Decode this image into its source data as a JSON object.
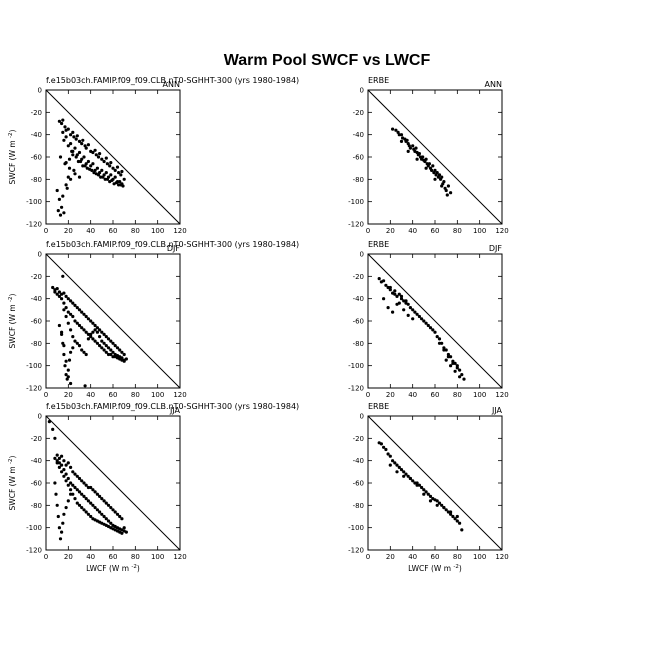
{
  "title": "Warm Pool SWCF vs LWCF",
  "left_label": "f.e15b03ch.FAMIP.f09_f09.CLB.nT0-SGHHT-300 (yrs 1980-1984)",
  "right_label": "ERBE",
  "xlabel": "LWCF (W m",
  "ylabel": "SWCF (W m",
  "unit_sup": "-2",
  "colors": {
    "points": "#000000",
    "axes": "#000000",
    "background": "#ffffff"
  },
  "chart_data": [
    {
      "type": "scatter",
      "panel": "model",
      "season": "ANN",
      "label": "f.e15b03ch.FAMIP.f09_f09.CLB.nT0-SGHHT-300 (yrs 1980-1984)",
      "xlim": [
        0,
        120
      ],
      "ylim": [
        -120,
        0
      ],
      "xticks": [
        0,
        20,
        40,
        60,
        80,
        100,
        120
      ],
      "yticks": [
        0,
        -20,
        -40,
        -60,
        -80,
        -100,
        -120
      ],
      "reference_line": "y = -x",
      "grid": false,
      "x": [
        12,
        14,
        15,
        17,
        18,
        20,
        22,
        24,
        25,
        27,
        28,
        30,
        32,
        33,
        35,
        36,
        38,
        40,
        42,
        44,
        45,
        47,
        48,
        50,
        52,
        54,
        55,
        57,
        58,
        60,
        62,
        64,
        65,
        67,
        68,
        70,
        16,
        20,
        24,
        28,
        32,
        36,
        40,
        44,
        48,
        52,
        56,
        60,
        64,
        68,
        15,
        18,
        22,
        26,
        30,
        34,
        38,
        42,
        46,
        50,
        54,
        58,
        62,
        66,
        10,
        12,
        14,
        16,
        18,
        20,
        11,
        13,
        15,
        19,
        22,
        25,
        18,
        21,
        24,
        29,
        33,
        37,
        41,
        45,
        49,
        53,
        57,
        61,
        65,
        69,
        23,
        27,
        31,
        35,
        39,
        43,
        47,
        51,
        55,
        59,
        63,
        67,
        13,
        17,
        21,
        26,
        30
      ],
      "y": [
        -28,
        -30,
        -27,
        -33,
        -36,
        -35,
        -40,
        -38,
        -42,
        -44,
        -41,
        -46,
        -48,
        -45,
        -50,
        -52,
        -49,
        -55,
        -56,
        -54,
        -58,
        -60,
        -57,
        -62,
        -64,
        -61,
        -66,
        -68,
        -65,
        -70,
        -72,
        -69,
        -74,
        -76,
        -73,
        -80,
        -45,
        -50,
        -55,
        -58,
        -62,
        -66,
        -68,
        -72,
        -74,
        -76,
        -78,
        -80,
        -82,
        -84,
        -38,
        -42,
        -48,
        -52,
        -56,
        -60,
        -64,
        -66,
        -70,
        -72,
        -74,
        -76,
        -78,
        -82,
        -90,
        -98,
        -105,
        -110,
        -85,
        -78,
        -108,
        -112,
        -95,
        -88,
        -80,
        -72,
        -65,
        -62,
        -58,
        -64,
        -68,
        -70,
        -72,
        -75,
        -78,
        -80,
        -82,
        -84,
        -85,
        -86,
        -55,
        -60,
        -64,
        -68,
        -71,
        -74,
        -76,
        -78,
        -80,
        -81,
        -83,
        -85,
        -60,
        -66,
        -70,
        -75,
        -78
      ]
    },
    {
      "type": "scatter",
      "panel": "obs",
      "season": "ANN",
      "label": "ERBE",
      "xlim": [
        0,
        120
      ],
      "ylim": [
        -120,
        0
      ],
      "xticks": [
        0,
        20,
        40,
        60,
        80,
        100,
        120
      ],
      "yticks": [
        0,
        -20,
        -40,
        -60,
        -80,
        -100,
        -120
      ],
      "reference_line": "y = -x",
      "grid": false,
      "x": [
        22,
        25,
        27,
        28,
        30,
        31,
        33,
        34,
        35,
        36,
        37,
        38,
        40,
        41,
        42,
        43,
        44,
        45,
        46,
        47,
        48,
        49,
        50,
        51,
        52,
        53,
        54,
        55,
        56,
        57,
        58,
        59,
        60,
        61,
        62,
        63,
        64,
        65,
        66,
        67,
        68,
        69,
        70,
        72,
        74,
        30,
        36,
        44,
        52,
        60,
        66,
        71
      ],
      "y": [
        -35,
        -36,
        -38,
        -40,
        -40,
        -43,
        -44,
        -46,
        -45,
        -48,
        -50,
        -52,
        -50,
        -53,
        -55,
        -52,
        -56,
        -58,
        -57,
        -60,
        -62,
        -60,
        -63,
        -64,
        -62,
        -66,
        -68,
        -66,
        -70,
        -72,
        -68,
        -74,
        -72,
        -76,
        -74,
        -78,
        -76,
        -80,
        -78,
        -84,
        -82,
        -88,
        -90,
        -86,
        -92,
        -46,
        -55,
        -62,
        -70,
        -80,
        -86,
        -94
      ]
    },
    {
      "type": "scatter",
      "panel": "model",
      "season": "DJF",
      "label": "f.e15b03ch.FAMIP.f09_f09.CLB.nT0-SGHHT-300 (yrs 1980-1984)",
      "xlim": [
        0,
        120
      ],
      "ylim": [
        -120,
        0
      ],
      "xticks": [
        0,
        20,
        40,
        60,
        80,
        100,
        120
      ],
      "yticks": [
        0,
        -20,
        -40,
        -60,
        -80,
        -100,
        -120
      ],
      "reference_line": "y = -x",
      "grid": false,
      "x": [
        6,
        8,
        10,
        12,
        14,
        16,
        18,
        20,
        22,
        24,
        26,
        28,
        30,
        32,
        34,
        36,
        38,
        40,
        42,
        44,
        46,
        48,
        50,
        52,
        54,
        56,
        58,
        60,
        62,
        64,
        66,
        68,
        70,
        72,
        8,
        10,
        12,
        14,
        16,
        18,
        20,
        22,
        24,
        26,
        28,
        30,
        32,
        34,
        36,
        38,
        40,
        42,
        44,
        46,
        48,
        50,
        52,
        54,
        56,
        58,
        60,
        62,
        64,
        66,
        68,
        70,
        14,
        15,
        16,
        17,
        18,
        19,
        20,
        21,
        22,
        24,
        12,
        14,
        16,
        18,
        20,
        22,
        16,
        18,
        20,
        22,
        24,
        26,
        28,
        30,
        32,
        34,
        36,
        38,
        40,
        42,
        44,
        46,
        48,
        50,
        52,
        54,
        56,
        58,
        60,
        62,
        64,
        66,
        68,
        70,
        15,
        35
      ],
      "y": [
        -30,
        -32,
        -31,
        -34,
        -36,
        -35,
        -38,
        -40,
        -42,
        -44,
        -46,
        -48,
        -50,
        -52,
        -54,
        -56,
        -58,
        -60,
        -62,
        -64,
        -66,
        -68,
        -70,
        -72,
        -74,
        -76,
        -78,
        -80,
        -82,
        -84,
        -86,
        -88,
        -90,
        -94,
        -34,
        -36,
        -38,
        -40,
        -44,
        -48,
        -52,
        -54,
        -56,
        -60,
        -62,
        -64,
        -66,
        -68,
        -70,
        -72,
        -74,
        -76,
        -78,
        -80,
        -82,
        -84,
        -86,
        -88,
        -90,
        -90,
        -92,
        -92,
        -93,
        -94,
        -95,
        -96,
        -70,
        -80,
        -90,
        -100,
        -108,
        -112,
        -104,
        -95,
        -88,
        -84,
        -64,
        -72,
        -82,
        -96,
        -110,
        -116,
        -50,
        -56,
        -62,
        -68,
        -74,
        -78,
        -80,
        -82,
        -86,
        -88,
        -90,
        -76,
        -72,
        -70,
        -68,
        -70,
        -74,
        -78,
        -80,
        -82,
        -84,
        -86,
        -88,
        -90,
        -91,
        -92,
        -93,
        -95,
        -20,
        -118
      ]
    },
    {
      "type": "scatter",
      "panel": "obs",
      "season": "DJF",
      "label": "ERBE",
      "xlim": [
        0,
        120
      ],
      "ylim": [
        -120,
        0
      ],
      "xticks": [
        0,
        20,
        40,
        60,
        80,
        100,
        120
      ],
      "yticks": [
        0,
        -20,
        -40,
        -60,
        -80,
        -100,
        -120
      ],
      "reference_line": "y = -x",
      "grid": false,
      "x": [
        10,
        12,
        14,
        16,
        18,
        20,
        22,
        24,
        26,
        28,
        30,
        32,
        34,
        36,
        38,
        40,
        42,
        44,
        46,
        48,
        50,
        52,
        54,
        56,
        58,
        60,
        62,
        64,
        66,
        68,
        70,
        72,
        74,
        76,
        78,
        80,
        82,
        84,
        86,
        14,
        18,
        22,
        26,
        30,
        34,
        20,
        24,
        28,
        32,
        36,
        40,
        70,
        74,
        78,
        82,
        64,
        68,
        72,
        76,
        80
      ],
      "y": [
        -22,
        -25,
        -24,
        -28,
        -30,
        -32,
        -35,
        -33,
        -38,
        -36,
        -40,
        -42,
        -44,
        -45,
        -48,
        -50,
        -52,
        -54,
        -56,
        -58,
        -60,
        -62,
        -64,
        -66,
        -68,
        -70,
        -74,
        -76,
        -80,
        -84,
        -86,
        -90,
        -92,
        -96,
        -98,
        -100,
        -104,
        -108,
        -112,
        -40,
        -48,
        -52,
        -45,
        -38,
        -42,
        -30,
        -36,
        -44,
        -50,
        -55,
        -58,
        -95,
        -100,
        -105,
        -110,
        -80,
        -86,
        -92,
        -98,
        -102
      ]
    },
    {
      "type": "scatter",
      "panel": "model",
      "season": "JJA",
      "label": "f.e15b03ch.FAMIP.f09_f09.CLB.nT0-SGHHT-300 (yrs 1980-1984)",
      "xlim": [
        0,
        120
      ],
      "ylim": [
        -120,
        0
      ],
      "xticks": [
        0,
        20,
        40,
        60,
        80,
        100,
        120
      ],
      "yticks": [
        0,
        -20,
        -40,
        -60,
        -80,
        -100,
        -120
      ],
      "reference_line": "y = -x",
      "grid": false,
      "x": [
        3,
        6,
        8,
        10,
        12,
        14,
        16,
        18,
        20,
        22,
        24,
        26,
        28,
        30,
        32,
        34,
        36,
        38,
        40,
        42,
        44,
        46,
        48,
        50,
        52,
        54,
        56,
        58,
        60,
        62,
        64,
        66,
        68,
        70,
        72,
        8,
        10,
        12,
        14,
        16,
        18,
        20,
        22,
        24,
        26,
        28,
        30,
        32,
        34,
        36,
        38,
        40,
        42,
        44,
        46,
        48,
        50,
        52,
        54,
        56,
        58,
        60,
        62,
        64,
        66,
        68,
        70,
        8,
        9,
        10,
        11,
        12,
        13,
        14,
        15,
        16,
        18,
        20,
        22,
        10,
        12,
        14,
        16,
        18,
        20,
        22,
        24,
        26,
        28,
        30,
        32,
        34,
        36,
        38,
        40,
        42,
        44,
        46,
        48,
        50,
        52,
        54,
        56,
        58,
        60,
        62,
        64,
        66,
        68
      ],
      "y": [
        -5,
        -12,
        -20,
        -35,
        -38,
        -36,
        -40,
        -44,
        -42,
        -46,
        -50,
        -52,
        -54,
        -56,
        -58,
        -60,
        -62,
        -64,
        -64,
        -66,
        -68,
        -70,
        -72,
        -74,
        -76,
        -78,
        -80,
        -82,
        -84,
        -86,
        -88,
        -90,
        -92,
        -100,
        -104,
        -38,
        -40,
        -42,
        -44,
        -48,
        -52,
        -56,
        -60,
        -62,
        -64,
        -66,
        -68,
        -70,
        -72,
        -74,
        -76,
        -78,
        -80,
        -82,
        -84,
        -86,
        -88,
        -90,
        -92,
        -94,
        -96,
        -98,
        -99,
        -100,
        -101,
        -102,
        -103,
        -60,
        -70,
        -80,
        -90,
        -100,
        -110,
        -104,
        -96,
        -88,
        -82,
        -76,
        -70,
        -42,
        -46,
        -50,
        -54,
        -58,
        -62,
        -66,
        -70,
        -74,
        -78,
        -80,
        -82,
        -84,
        -86,
        -88,
        -90,
        -92,
        -93,
        -94,
        -95,
        -96,
        -97,
        -98,
        -99,
        -100,
        -101,
        -102,
        -103,
        -104,
        -105
      ]
    },
    {
      "type": "scatter",
      "panel": "obs",
      "season": "JJA",
      "label": "ERBE",
      "xlim": [
        0,
        120
      ],
      "ylim": [
        -120,
        0
      ],
      "xticks": [
        0,
        20,
        40,
        60,
        80,
        100,
        120
      ],
      "yticks": [
        0,
        -20,
        -40,
        -60,
        -80,
        -100,
        -120
      ],
      "reference_line": "y = -x",
      "grid": false,
      "x": [
        10,
        12,
        14,
        16,
        18,
        20,
        22,
        24,
        26,
        28,
        30,
        32,
        34,
        36,
        38,
        40,
        42,
        44,
        46,
        48,
        50,
        52,
        54,
        56,
        58,
        60,
        62,
        64,
        66,
        68,
        70,
        72,
        74,
        76,
        78,
        80,
        82,
        84,
        20,
        26,
        32,
        38,
        44,
        50,
        56,
        62,
        68,
        74,
        80
      ],
      "y": [
        -24,
        -25,
        -28,
        -30,
        -34,
        -36,
        -40,
        -42,
        -44,
        -46,
        -48,
        -50,
        -52,
        -54,
        -56,
        -58,
        -60,
        -60,
        -62,
        -64,
        -66,
        -68,
        -70,
        -72,
        -74,
        -75,
        -76,
        -78,
        -80,
        -82,
        -84,
        -86,
        -88,
        -90,
        -92,
        -94,
        -96,
        -102,
        -44,
        -50,
        -54,
        -56,
        -62,
        -70,
        -76,
        -80,
        -82,
        -86,
        -90
      ]
    }
  ]
}
